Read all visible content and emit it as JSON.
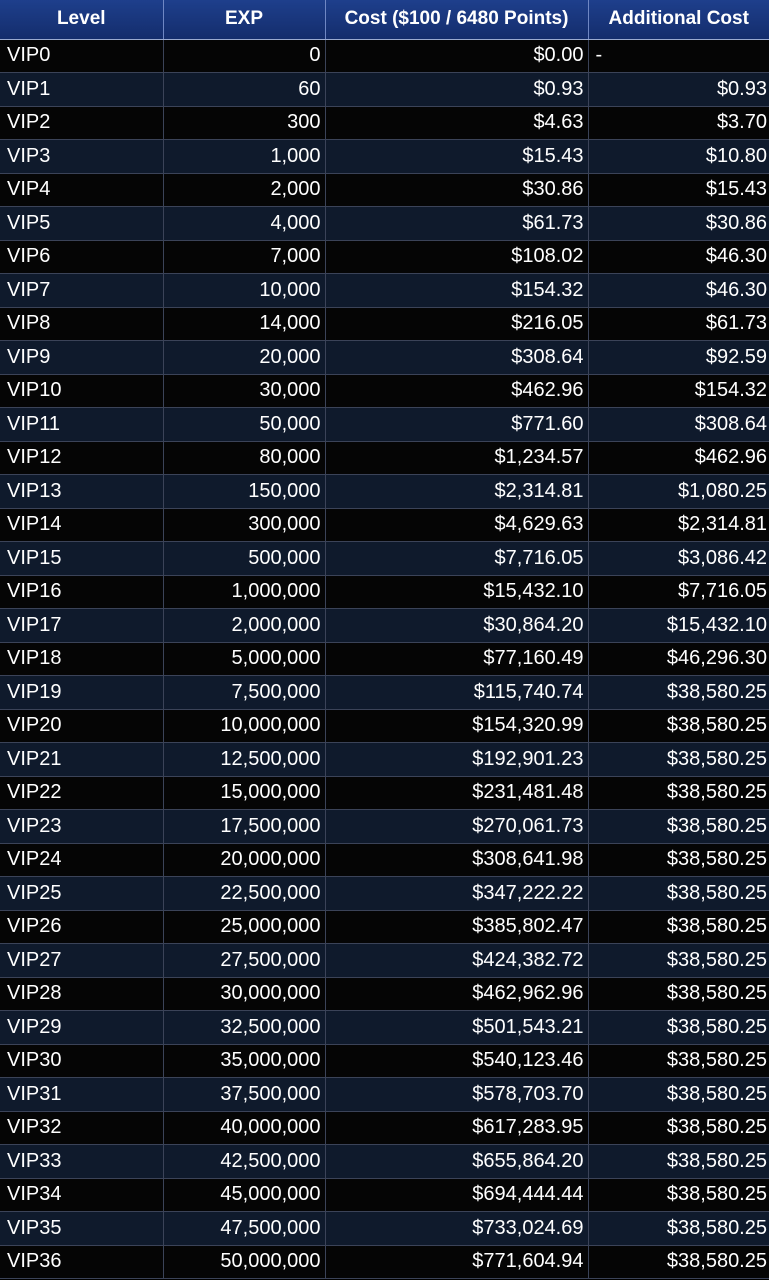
{
  "table": {
    "headers": [
      "Level",
      "EXP",
      "Cost ($100 / 6480 Points)",
      "Additional Cost"
    ],
    "rows": [
      [
        "VIP0",
        "0",
        "$0.00",
        "-"
      ],
      [
        "VIP1",
        "60",
        "$0.93",
        "$0.93"
      ],
      [
        "VIP2",
        "300",
        "$4.63",
        "$3.70"
      ],
      [
        "VIP3",
        "1,000",
        "$15.43",
        "$10.80"
      ],
      [
        "VIP4",
        "2,000",
        "$30.86",
        "$15.43"
      ],
      [
        "VIP5",
        "4,000",
        "$61.73",
        "$30.86"
      ],
      [
        "VIP6",
        "7,000",
        "$108.02",
        "$46.30"
      ],
      [
        "VIP7",
        "10,000",
        "$154.32",
        "$46.30"
      ],
      [
        "VIP8",
        "14,000",
        "$216.05",
        "$61.73"
      ],
      [
        "VIP9",
        "20,000",
        "$308.64",
        "$92.59"
      ],
      [
        "VIP10",
        "30,000",
        "$462.96",
        "$154.32"
      ],
      [
        "VIP11",
        "50,000",
        "$771.60",
        "$308.64"
      ],
      [
        "VIP12",
        "80,000",
        "$1,234.57",
        "$462.96"
      ],
      [
        "VIP13",
        "150,000",
        "$2,314.81",
        "$1,080.25"
      ],
      [
        "VIP14",
        "300,000",
        "$4,629.63",
        "$2,314.81"
      ],
      [
        "VIP15",
        "500,000",
        "$7,716.05",
        "$3,086.42"
      ],
      [
        "VIP16",
        "1,000,000",
        "$15,432.10",
        "$7,716.05"
      ],
      [
        "VIP17",
        "2,000,000",
        "$30,864.20",
        "$15,432.10"
      ],
      [
        "VIP18",
        "5,000,000",
        "$77,160.49",
        "$46,296.30"
      ],
      [
        "VIP19",
        "7,500,000",
        "$115,740.74",
        "$38,580.25"
      ],
      [
        "VIP20",
        "10,000,000",
        "$154,320.99",
        "$38,580.25"
      ],
      [
        "VIP21",
        "12,500,000",
        "$192,901.23",
        "$38,580.25"
      ],
      [
        "VIP22",
        "15,000,000",
        "$231,481.48",
        "$38,580.25"
      ],
      [
        "VIP23",
        "17,500,000",
        "$270,061.73",
        "$38,580.25"
      ],
      [
        "VIP24",
        "20,000,000",
        "$308,641.98",
        "$38,580.25"
      ],
      [
        "VIP25",
        "22,500,000",
        "$347,222.22",
        "$38,580.25"
      ],
      [
        "VIP26",
        "25,000,000",
        "$385,802.47",
        "$38,580.25"
      ],
      [
        "VIP27",
        "27,500,000",
        "$424,382.72",
        "$38,580.25"
      ],
      [
        "VIP28",
        "30,000,000",
        "$462,962.96",
        "$38,580.25"
      ],
      [
        "VIP29",
        "32,500,000",
        "$501,543.21",
        "$38,580.25"
      ],
      [
        "VIP30",
        "35,000,000",
        "$540,123.46",
        "$38,580.25"
      ],
      [
        "VIP31",
        "37,500,000",
        "$578,703.70",
        "$38,580.25"
      ],
      [
        "VIP32",
        "40,000,000",
        "$617,283.95",
        "$38,580.25"
      ],
      [
        "VIP33",
        "42,500,000",
        "$655,864.20",
        "$38,580.25"
      ],
      [
        "VIP34",
        "45,000,000",
        "$694,444.44",
        "$38,580.25"
      ],
      [
        "VIP35",
        "47,500,000",
        "$733,024.69",
        "$38,580.25"
      ],
      [
        "VIP36",
        "50,000,000",
        "$771,604.94",
        "$38,580.25"
      ]
    ]
  },
  "colors": {
    "header_bg": "#1e3f8c",
    "row_dark": "#050505",
    "row_navy": "#0f1a2c",
    "text": "#ffffff",
    "grid": "#3b4358"
  }
}
